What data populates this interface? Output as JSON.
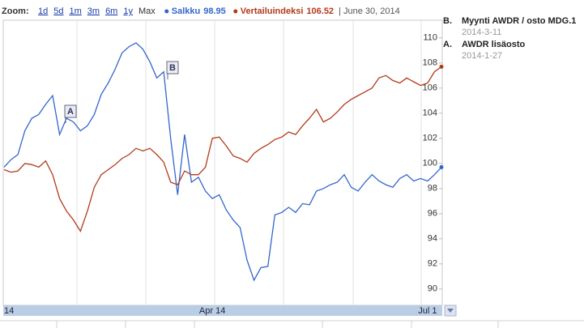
{
  "chart_data": {
    "type": "line",
    "zoom": {
      "label": "Zoom:",
      "options": [
        "1d",
        "5d",
        "1m",
        "3m",
        "6m",
        "1y"
      ],
      "current": "Max"
    },
    "legend_date": "| June 30, 2014",
    "categories": [
      "14",
      null,
      null,
      null,
      null,
      null,
      null,
      null,
      null,
      null,
      null,
      null,
      null,
      null,
      null,
      null,
      null,
      null,
      null,
      null,
      null,
      null,
      null,
      null,
      null,
      null,
      null,
      null,
      null,
      null,
      "Apr 14",
      null,
      null,
      null,
      null,
      null,
      null,
      null,
      null,
      null,
      null,
      null,
      null,
      null,
      null,
      null,
      null,
      null,
      null,
      null,
      null,
      null,
      null,
      null,
      null,
      null,
      null,
      null,
      null,
      null,
      null,
      "Jul 1",
      null,
      null
    ],
    "series": [
      {
        "name": "Salkku",
        "legend_value": "98.95",
        "color": "#3366cc",
        "values": [
          99.7,
          100.3,
          100.7,
          102.6,
          103.6,
          103.9,
          104.7,
          105.4,
          102.3,
          103.6,
          103.3,
          102.6,
          103.0,
          103.9,
          105.5,
          106.4,
          107.5,
          108.8,
          109.3,
          109.6,
          109.1,
          108.1,
          106.8,
          107.3,
          102.0,
          97.5,
          102.3,
          98.5,
          98.9,
          97.8,
          97.2,
          97.5,
          96.3,
          95.5,
          94.9,
          92.3,
          90.7,
          91.7,
          91.8,
          95.9,
          96.1,
          96.5,
          96.1,
          96.8,
          96.7,
          97.8,
          98.0,
          98.3,
          98.5,
          99.1,
          98.1,
          97.8,
          98.5,
          99.1,
          98.6,
          98.3,
          98.1,
          98.8,
          99.1,
          98.6,
          98.8,
          98.6,
          99.1,
          99.7
        ]
      },
      {
        "name": "Vertailuindeksi",
        "legend_value": "106.52",
        "color": "#b33a1a",
        "values": [
          99.5,
          99.3,
          99.4,
          100.0,
          99.9,
          99.7,
          100.2,
          99.1,
          97.2,
          96.2,
          95.5,
          94.6,
          96.2,
          98.1,
          99.1,
          99.5,
          99.9,
          100.4,
          100.7,
          101.2,
          101.0,
          101.2,
          100.7,
          100.1,
          98.5,
          98.3,
          99.4,
          99.1,
          99.1,
          99.7,
          102.0,
          102.1,
          101.4,
          100.6,
          100.4,
          100.1,
          100.8,
          101.2,
          101.5,
          101.9,
          102.1,
          102.5,
          102.3,
          103.0,
          103.6,
          104.3,
          103.3,
          103.6,
          104.1,
          104.7,
          105.1,
          105.4,
          105.7,
          106.0,
          106.8,
          107.0,
          106.6,
          106.4,
          106.8,
          106.5,
          106.2,
          106.4,
          107.3,
          107.7
        ]
      }
    ],
    "ylim": [
      88.7,
      111.4
    ],
    "yticks": [
      90,
      92,
      94,
      96,
      98,
      100,
      102,
      104,
      106,
      108,
      110
    ],
    "annotations": [
      {
        "flag": "B",
        "letter": "B.",
        "text": "Myynti AWDR / osto MDG.1",
        "date": "2014-3-11"
      },
      {
        "flag": "A",
        "letter": "A.",
        "text": "AWDR lisäosto",
        "date": "2014-1-27"
      }
    ]
  }
}
